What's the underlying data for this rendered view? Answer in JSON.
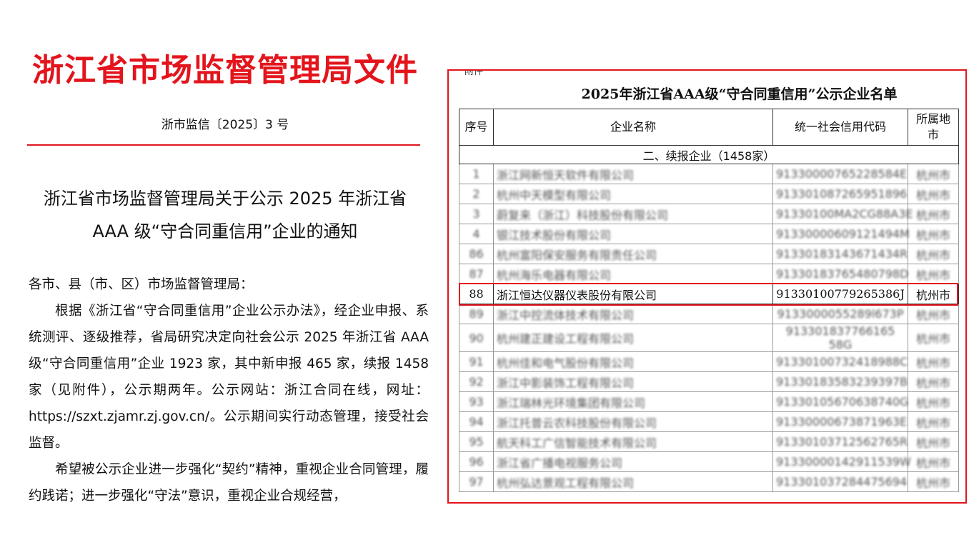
{
  "left_doc": {
    "title": "浙江省市场监督管理局文件",
    "doc_number": "浙市监信〔2025〕3 号",
    "heading_line1": "浙江省市场监督管理局关于公示 2025 年浙江省",
    "heading_line2": "AAA 级“守合同重信用”企业的通知",
    "addressee": "各市、县（市、区）市场监督管理局：",
    "paragraph1": "根据《浙江省“守合同重信用”企业公示办法》，经企业申报、系统测评、逐级推荐，省局研究决定向社会公示 2025 年浙江省 AAA 级“守合同重信用”企业 1923 家，其中新申报 465 家，续报 1458 家（见附件），公示期两年。公示网站：浙江合同在线，网址：https://szxt.zjamr.zj.gov.cn/。公示期间实行动态管理，接受社会监督。",
    "paragraph2": "希望被公示企业进一步强化“契约”精神，重视企业合同管理，履约践诺；进一步强化“守法”意识，重视企业合规经营，"
  },
  "right_doc": {
    "attachment_label": "附件",
    "title": "2025年浙江省AAA级“守合同重信用”公示企业名单",
    "headers": [
      "序号",
      "企业名称",
      "统一社会信用代码",
      "所属地市"
    ],
    "section": "二、续报企业（1458家）",
    "rows": [
      {
        "no": "1",
        "name": "浙江网新恒天软件有限公司",
        "code": "91330000765228584E",
        "city": "杭州市",
        "blurred": true
      },
      {
        "no": "2",
        "name": "杭州中天模型有限公司",
        "code": "913301087265951896",
        "city": "杭州市",
        "blurred": true
      },
      {
        "no": "3",
        "name": "蔚复来（浙江）科技股份有限公司",
        "code": "91330100MA2CG88A3E",
        "city": "杭州市",
        "blurred": true
      },
      {
        "no": "4",
        "name": "银江技术股份有限公司",
        "code": "91330000609121494M",
        "city": "杭州市",
        "blurred": true
      },
      {
        "no": "86",
        "name": "杭州富阳保安服务有限责任公司",
        "code": "91330183143671434R",
        "city": "杭州市",
        "blurred": true
      },
      {
        "no": "87",
        "name": "杭州海乐电器有限公司",
        "code": "91330183765480798D",
        "city": "杭州市",
        "blurred": true
      },
      {
        "no": "88",
        "name": "浙江恒达仪器仪表股份有限公司",
        "code": "91330100779265386J",
        "city": "杭州市",
        "blurred": false
      },
      {
        "no": "89",
        "name": "浙江中控流体技术有限公司",
        "code": "9133000055289l673P",
        "city": "杭州市",
        "blurred": true
      },
      {
        "no": "90",
        "name": "杭州建正建设工程有限公司",
        "code": "913301837766165 58G",
        "city": "杭州市",
        "blurred": true
      },
      {
        "no": "91",
        "name": "杭州佳和电气股份有限公司",
        "code": "91330100732418988C",
        "city": "杭州市",
        "blurred": true
      },
      {
        "no": "92",
        "name": "浙江中影装饰工程有限公司",
        "code": "91330183583239397B",
        "city": "杭州市",
        "blurred": true
      },
      {
        "no": "93",
        "name": "浙江瑞林光环境集团有限公司",
        "code": "91330105670638740G",
        "city": "杭州市",
        "blurred": true
      },
      {
        "no": "94",
        "name": "浙江托普云农科技股份有限公司",
        "code": "91330000673871963E",
        "city": "杭州市",
        "blurred": true
      },
      {
        "no": "95",
        "name": "航天科工广信智能技术有限公司",
        "code": "91330103712562765R",
        "city": "杭州市",
        "blurred": true
      },
      {
        "no": "96",
        "name": "浙江省广播电视服务公司",
        "code": "91330000142911539W",
        "city": "杭州市",
        "blurred": true
      },
      {
        "no": "97",
        "name": "杭州弘达景观工程有限公司",
        "code": "913301037284475694",
        "city": "杭州市",
        "blurred": true
      }
    ],
    "highlight_color": "#e3141c"
  }
}
